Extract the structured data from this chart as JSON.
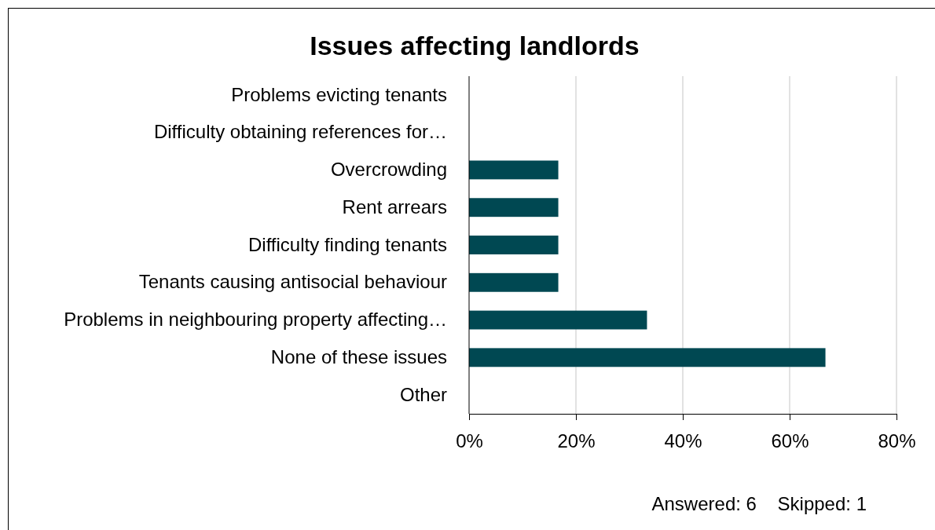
{
  "chart_data": {
    "type": "bar",
    "orientation": "horizontal",
    "title": "Issues affecting landlords",
    "categories": [
      "Problems evicting tenants",
      "Difficulty obtaining references for…",
      "Overcrowding",
      "Rent arrears",
      "Difficulty finding tenants",
      "Tenants causing antisocial behaviour",
      "Problems in neighbouring property affecting…",
      "None of these issues",
      "Other"
    ],
    "values": [
      0,
      0,
      16.7,
      16.7,
      16.7,
      16.7,
      33.3,
      66.7,
      0
    ],
    "color": "#004852",
    "xlim": [
      0,
      80
    ],
    "xticks": [
      {
        "value": 0,
        "label": "0%"
      },
      {
        "value": 20,
        "label": "20%"
      },
      {
        "value": 40,
        "label": "40%"
      },
      {
        "value": 60,
        "label": "60%"
      },
      {
        "value": 80,
        "label": "80%"
      }
    ],
    "grid": "x",
    "annotations": [
      "Answered: 6    Skipped: 1"
    ]
  }
}
